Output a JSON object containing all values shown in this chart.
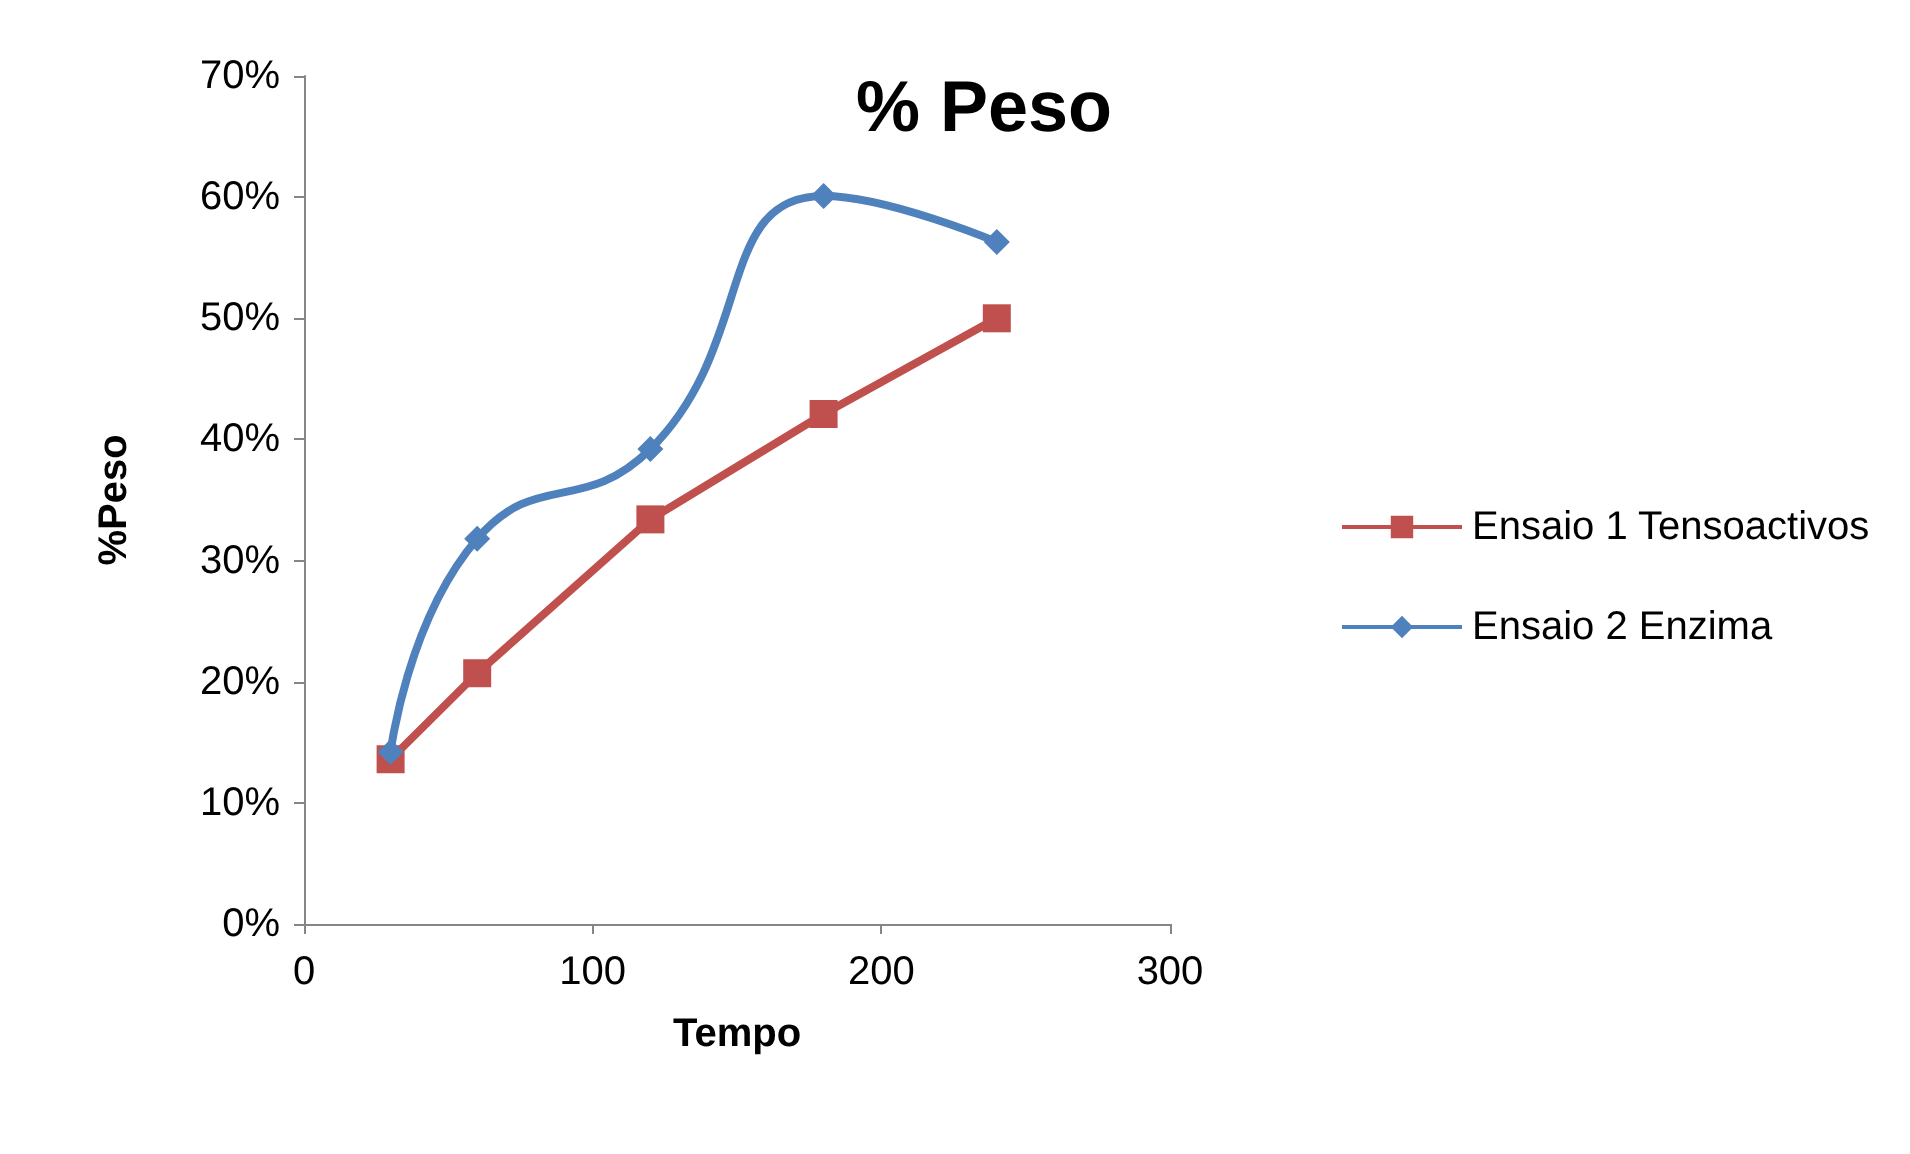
{
  "chart_data": {
    "type": "line",
    "title": "% Peso",
    "xlabel": "Tempo",
    "ylabel": "%Peso",
    "x": [
      30,
      60,
      120,
      180,
      240
    ],
    "series": [
      {
        "name": "Ensaio 1 Tensoactivos",
        "color": "#c0504d",
        "marker": "square",
        "values": [
          13.6,
          20.7,
          33.4,
          42.1,
          50
        ]
      },
      {
        "name": "Ensaio 2 Enzima",
        "color": "#4f81bd",
        "marker": "diamond",
        "values": [
          14.2,
          31.8,
          39.2,
          60.1,
          56.3
        ]
      }
    ],
    "xlim": [
      0,
      300
    ],
    "xticks": [
      0,
      100,
      200,
      300
    ],
    "ylim": [
      0,
      70
    ],
    "yticks": [
      {
        "value": 0,
        "label": "0%"
      },
      {
        "value": 10,
        "label": "10%"
      },
      {
        "value": 20,
        "label": "20%"
      },
      {
        "value": 30,
        "label": "30%"
      },
      {
        "value": 40,
        "label": "40%"
      },
      {
        "value": 50,
        "label": "50%"
      },
      {
        "value": 60,
        "label": "60%"
      },
      {
        "value": 70,
        "label": "70%"
      }
    ],
    "grid": false,
    "legend": "right"
  }
}
